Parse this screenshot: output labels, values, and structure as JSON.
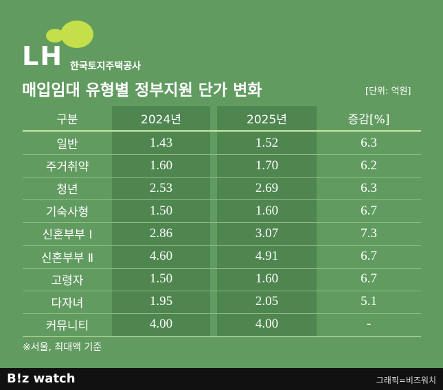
{
  "header": {
    "logo": "LH",
    "org": "한국토지주택공사",
    "title": "매입임대 유형별 정부지원 단가 변화",
    "unit": "[단위: 억원]"
  },
  "table": {
    "columns": [
      "구분",
      "2024년",
      "2025년",
      "증감[%]"
    ],
    "rows": [
      [
        "일반",
        "1.43",
        "1.52",
        "6.3"
      ],
      [
        "주거취약",
        "1.60",
        "1.70",
        "6.2"
      ],
      [
        "청년",
        "2.53",
        "2.69",
        "6.3"
      ],
      [
        "기숙사형",
        "1.50",
        "1.60",
        "6.7"
      ],
      [
        "신혼부부 Ⅰ",
        "2.86",
        "3.07",
        "7.3"
      ],
      [
        "신혼부부 Ⅱ",
        "4.60",
        "4.91",
        "6.7"
      ],
      [
        "고령자",
        "1.50",
        "1.60",
        "6.7"
      ],
      [
        "다자녀",
        "1.95",
        "2.05",
        "5.1"
      ],
      [
        "커뮤니티",
        "4.00",
        "4.00",
        "-"
      ]
    ]
  },
  "footnote": "※서울, 최대액 기준",
  "footer": {
    "brand": "B!z watch",
    "credit": "그래픽=비즈워치"
  }
}
